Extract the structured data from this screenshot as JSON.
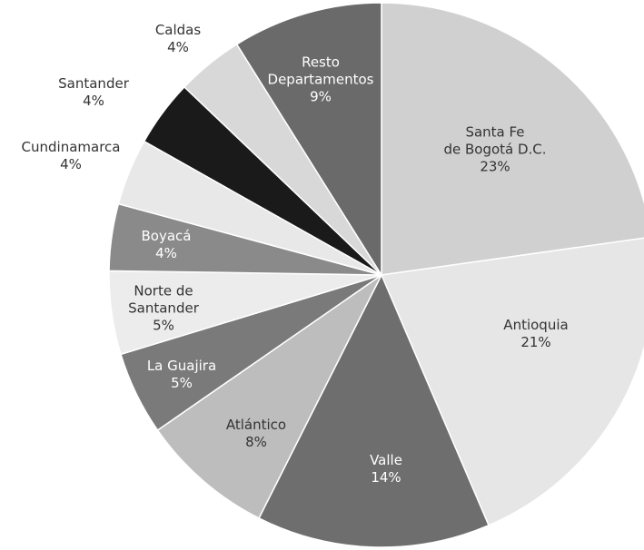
{
  "chart_data": {
    "type": "pie",
    "categories": [
      "Santa Fe\nde Bogotá D.C.",
      "Antioquia",
      "Valle",
      "Atlántico",
      "La Guajira",
      "Norte de\nSantander",
      "Boyacá",
      "Cundinamarca",
      "Santander",
      "Caldas",
      "Resto\nDepartamentos"
    ],
    "values": [
      23,
      21,
      14,
      8,
      5,
      5,
      4,
      4,
      4,
      4,
      9
    ],
    "value_labels": [
      "23%",
      "21%",
      "14%",
      "8%",
      "5%",
      "5%",
      "4%",
      "4%",
      "4%",
      "4%",
      "9%"
    ],
    "colors": [
      "#d0d0d0",
      "#e6e6e6",
      "#6e6e6e",
      "#bdbdbd",
      "#7a7a7a",
      "#ececec",
      "#8a8a8a",
      "#e8e8e8",
      "#1a1a1a",
      "#d8d8d8",
      "#6a6a6a"
    ]
  }
}
